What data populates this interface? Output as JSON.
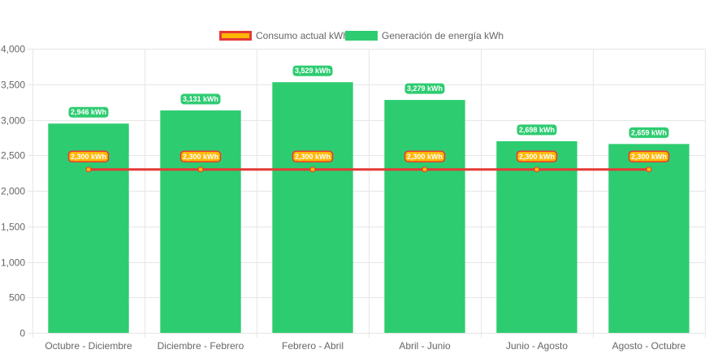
{
  "colors": {
    "consumo_fill": "#FFB703",
    "consumo_border": "#E53935",
    "consumo_line": "#E53935",
    "generacion_fill": "#2ECC71",
    "grid": "#E6E6E6",
    "tick_text": "#666666"
  },
  "legend": {
    "consumo": "Consumo actual kWh",
    "generacion": "Generación de energía kWh"
  },
  "chart_data": {
    "type": "bar",
    "categories": [
      "Octubre - Diciembre",
      "Diciembre - Febrero",
      "Febrero - Abril",
      "Abril - Junio",
      "Junio - Agosto",
      "Agosto - Octubre"
    ],
    "series": [
      {
        "name": "Generación de energía kWh",
        "type": "bar",
        "values": [
          2946,
          3131,
          3529,
          3279,
          2698,
          2659
        ],
        "labels": [
          "2,946 kWh",
          "3,131 kWh",
          "3,529 kWh",
          "3,279 kWh",
          "2,698 kWh",
          "2,659 kWh"
        ]
      },
      {
        "name": "Consumo actual kWh",
        "type": "line",
        "values": [
          2300,
          2300,
          2300,
          2300,
          2300,
          2300
        ],
        "labels": [
          "2,300 kWh",
          "2,300 kWh",
          "2,300 kWh",
          "2,300 kWh",
          "2,300 kWh",
          "2,300 kWh"
        ]
      }
    ],
    "ylim": [
      0,
      4000
    ],
    "yticks": [
      0,
      500,
      1000,
      1500,
      2000,
      2500,
      3000,
      3500,
      4000
    ],
    "ytick_labels": [
      "0",
      "500",
      "1,000",
      "1,500",
      "2,000",
      "2,500",
      "3,000",
      "3,500",
      "4,000"
    ],
    "grid": true,
    "legend_position": "top"
  }
}
